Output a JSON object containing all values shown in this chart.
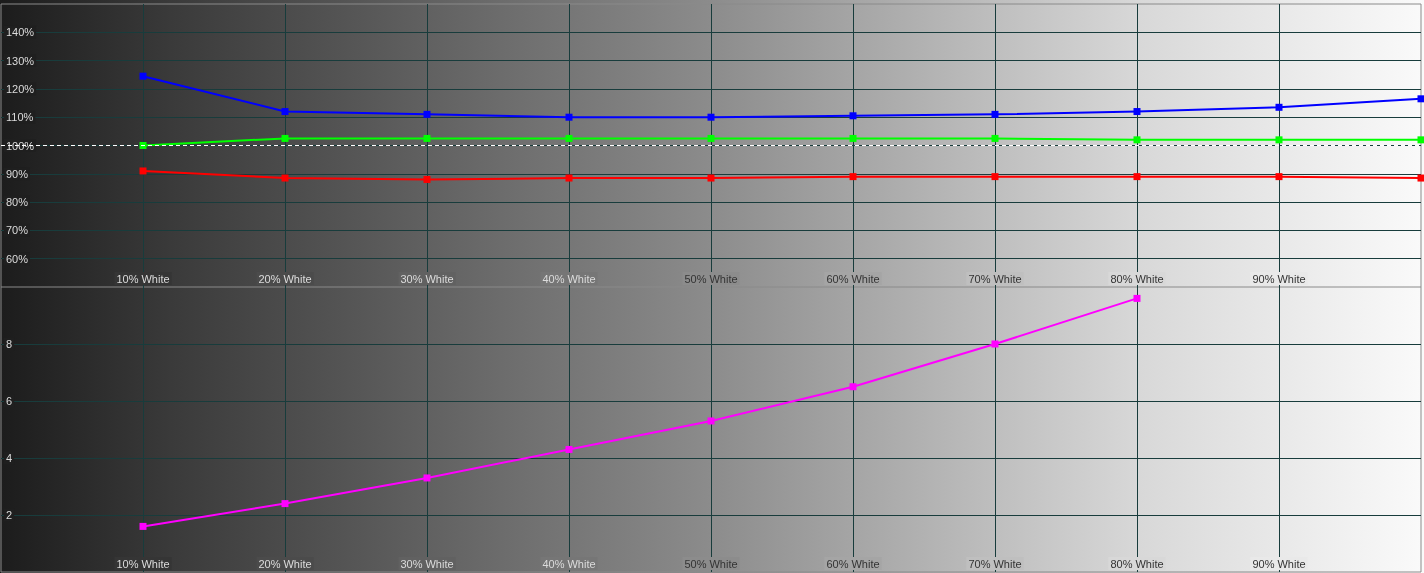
{
  "chart_data": [
    {
      "type": "line",
      "x": [
        10,
        20,
        30,
        40,
        50,
        60,
        70,
        80,
        90,
        100
      ],
      "series": [
        {
          "color": "#0000ff",
          "values": [
            124.5,
            112,
            111,
            110,
            110,
            110.5,
            111,
            112,
            113.5,
            116.5
          ]
        },
        {
          "color": "#00ff00",
          "values": [
            100,
            102.5,
            102.5,
            102.5,
            102.5,
            102.5,
            102.5,
            102,
            102,
            102
          ]
        },
        {
          "color": "#ff0000",
          "values": [
            91,
            88.5,
            88,
            88.5,
            88.5,
            89,
            89,
            89,
            89,
            88.5
          ]
        }
      ],
      "xlim": [
        0,
        100
      ],
      "xticks": [
        {
          "value": 10,
          "label": "10% White"
        },
        {
          "value": 20,
          "label": "20% White"
        },
        {
          "value": 30,
          "label": "30% White"
        },
        {
          "value": 40,
          "label": "40% White"
        },
        {
          "value": 50,
          "label": "50% White"
        },
        {
          "value": 60,
          "label": "60% White"
        },
        {
          "value": 70,
          "label": "70% White"
        },
        {
          "value": 80,
          "label": "80% White"
        },
        {
          "value": 90,
          "label": "90% White"
        }
      ],
      "ylim": [
        50,
        150
      ],
      "yticks": [
        {
          "value": 60,
          "label": "60%"
        },
        {
          "value": 70,
          "label": "70%"
        },
        {
          "value": 80,
          "label": "80%"
        },
        {
          "value": 90,
          "label": "90%"
        },
        {
          "value": 100,
          "label": "100%"
        },
        {
          "value": 110,
          "label": "110%"
        },
        {
          "value": 120,
          "label": "120%"
        },
        {
          "value": 130,
          "label": "130%"
        },
        {
          "value": 140,
          "label": "140%"
        }
      ],
      "ref_lines": [
        {
          "axis": "y",
          "value": 100,
          "color": "#ffffff",
          "line_style": "dashed"
        }
      ],
      "grid": true,
      "marker": "square",
      "line_style": "solid"
    },
    {
      "type": "line",
      "x": [
        10,
        20,
        30,
        40,
        50,
        60,
        70,
        80
      ],
      "series": [
        {
          "color": "#ff00ff",
          "values": [
            1.6,
            2.4,
            3.3,
            4.3,
            5.3,
            6.5,
            8.0,
            9.6
          ]
        }
      ],
      "xlim": [
        0,
        100
      ],
      "xticks": [
        {
          "value": 10,
          "label": "10% White"
        },
        {
          "value": 20,
          "label": "20% White"
        },
        {
          "value": 30,
          "label": "30% White"
        },
        {
          "value": 40,
          "label": "40% White"
        },
        {
          "value": 50,
          "label": "50% White"
        },
        {
          "value": 60,
          "label": "60% White"
        },
        {
          "value": 70,
          "label": "70% White"
        },
        {
          "value": 80,
          "label": "80% White"
        },
        {
          "value": 90,
          "label": "90% White"
        }
      ],
      "ylim": [
        0,
        10
      ],
      "yticks": [
        2,
        4,
        6,
        8
      ],
      "grid": true,
      "marker": "square",
      "line_style": "solid"
    }
  ]
}
